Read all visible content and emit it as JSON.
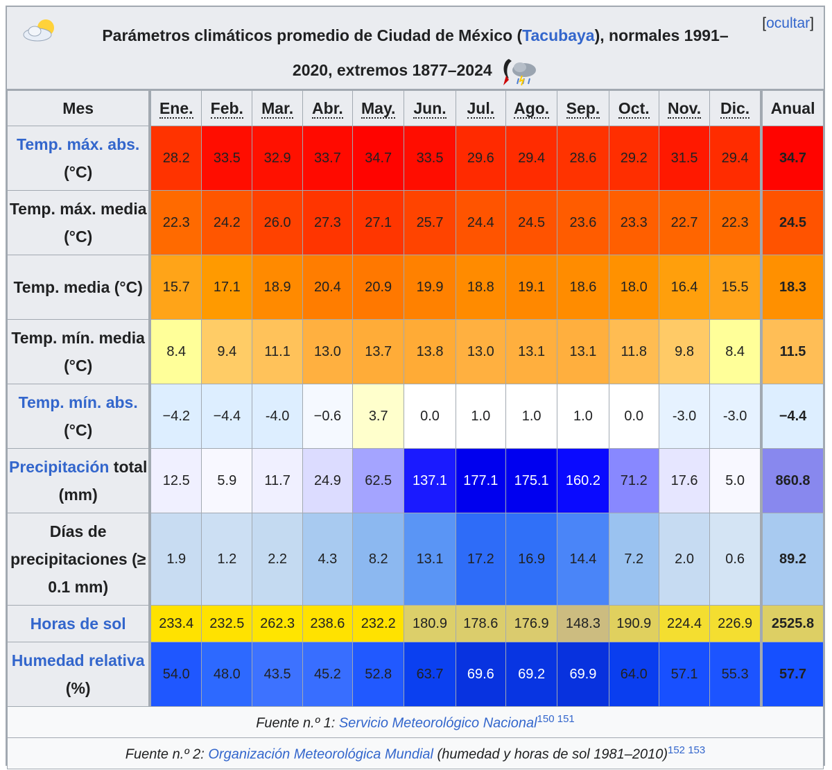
{
  "caption": {
    "prefix": "Parámetros climáticos promedio de Ciudad de México (",
    "link": "Tacubaya",
    "suffix_line1": "), normales 1991–",
    "line2": "2020, extremos 1877–2024",
    "hide_label": "ocultar"
  },
  "header": {
    "label": "Mes",
    "months": [
      "Ene.",
      "Feb.",
      "Mar.",
      "Abr.",
      "May.",
      "Jun.",
      "Jul.",
      "Ago.",
      "Sep.",
      "Oct.",
      "Nov.",
      "Dic."
    ],
    "annual": "Anual"
  },
  "rows": [
    {
      "label_link": "Temp. máx. abs.",
      "label_rest": " (°C)",
      "values": [
        "28.2",
        "33.5",
        "32.9",
        "33.7",
        "34.7",
        "33.5",
        "29.6",
        "29.4",
        "28.6",
        "29.2",
        "31.5",
        "29.4"
      ],
      "annual": "34.7",
      "colors": [
        "#ff3300",
        "#ff0d00",
        "#ff1100",
        "#ff0a00",
        "#ff0400",
        "#ff0d00",
        "#ff2a00",
        "#ff2c00",
        "#ff3300",
        "#ff2e00",
        "#ff1900",
        "#ff2c00"
      ],
      "annual_color": "#ff0400"
    },
    {
      "label_link": "",
      "label_rest": "Temp. máx. media (°C)",
      "values": [
        "22.3",
        "24.2",
        "26.0",
        "27.3",
        "27.1",
        "25.7",
        "24.4",
        "24.5",
        "23.6",
        "23.3",
        "22.7",
        "22.3"
      ],
      "annual": "24.5",
      "colors": [
        "#ff6a00",
        "#ff5600",
        "#ff4200",
        "#ff3500",
        "#ff3600",
        "#ff4400",
        "#ff5400",
        "#ff5300",
        "#ff5c00",
        "#ff5f00",
        "#ff6500",
        "#ff6a00"
      ],
      "annual_color": "#ff5300"
    },
    {
      "label_link": "",
      "label_rest": "Temp. media (°C)",
      "values": [
        "15.7",
        "17.1",
        "18.9",
        "20.4",
        "20.9",
        "19.9",
        "18.8",
        "19.1",
        "18.6",
        "18.0",
        "16.4",
        "15.5"
      ],
      "annual": "18.3",
      "colors": [
        "#ffa418",
        "#ff9a00",
        "#ff8a00",
        "#ff7d00",
        "#ff7800",
        "#ff8100",
        "#ff8b00",
        "#ff8800",
        "#ff8c00",
        "#ff9100",
        "#ff9f0c",
        "#ffa51b"
      ],
      "annual_color": "#ff9000"
    },
    {
      "label_link": "",
      "label_rest": "Temp. mín. media (°C)",
      "values": [
        "8.4",
        "9.4",
        "11.1",
        "13.0",
        "13.7",
        "13.8",
        "13.0",
        "13.1",
        "13.1",
        "11.8",
        "9.8",
        "8.4"
      ],
      "annual": "11.5",
      "colors": [
        "#ffff99",
        "#ffcc66",
        "#ffc25a",
        "#ffb040",
        "#ffac38",
        "#ffab36",
        "#ffb040",
        "#ffaf3e",
        "#ffaf3e",
        "#ffbc52",
        "#ffca66",
        "#ffff99"
      ],
      "annual_color": "#ffbe56"
    },
    {
      "label_link": "Temp. mín. abs.",
      "label_rest": " (°C)",
      "values": [
        "−4.2",
        "−4.4",
        "-4.0",
        "−0.6",
        "3.7",
        "0.0",
        "1.0",
        "1.0",
        "1.0",
        "0.0",
        "-3.0",
        "-3.0"
      ],
      "annual": "−4.4",
      "colors": [
        "#ddeeff",
        "#ddeeff",
        "#ddeeff",
        "#f5f9ff",
        "#ffffcc",
        "#ffffff",
        "#ffffff",
        "#ffffff",
        "#ffffff",
        "#ffffff",
        "#e6f2ff",
        "#e6f2ff"
      ],
      "annual_color": "#ddeeff"
    },
    {
      "label_link": "Precipitación",
      "label_rest": " total (mm)",
      "values": [
        "12.5",
        "5.9",
        "11.7",
        "24.9",
        "62.5",
        "137.1",
        "177.1",
        "175.1",
        "160.2",
        "71.2",
        "17.6",
        "5.0"
      ],
      "annual": "860.8",
      "colors": [
        "#f0f0ff",
        "#f8f8ff",
        "#f0f0ff",
        "#dcdcff",
        "#a4a4ff",
        "#1a1aff",
        "#0000ee",
        "#0000f0",
        "#0a0aff",
        "#8888ff",
        "#e6e6ff",
        "#f8f8ff"
      ],
      "annual_color": "#8888ee"
    },
    {
      "label_link": "",
      "label_rest": "Días de precipitaciones (≥ 0.1 mm)",
      "values": [
        "1.9",
        "1.2",
        "2.2",
        "4.3",
        "8.2",
        "13.1",
        "17.2",
        "16.9",
        "14.4",
        "7.2",
        "2.0",
        "0.6"
      ],
      "annual": "89.2",
      "colors": [
        "#c8dcf2",
        "#ccdff3",
        "#c4daf1",
        "#a8caf0",
        "#8cb8f0",
        "#5a95f5",
        "#2e6cf8",
        "#3070f8",
        "#4a85f8",
        "#9ac2f0",
        "#c6dbf2",
        "#d4e4f4"
      ],
      "annual_color": "#a8caf0"
    },
    {
      "label_link": "Horas de sol",
      "label_rest": "",
      "values": [
        "233.4",
        "232.5",
        "262.3",
        "238.6",
        "232.2",
        "180.9",
        "178.6",
        "176.9",
        "148.3",
        "190.9",
        "224.4",
        "226.9"
      ],
      "annual": "2525.8",
      "colors": [
        "#ffe200",
        "#ffe200",
        "#ffe500",
        "#ffe200",
        "#ffe200",
        "#dccf6a",
        "#dbcd6c",
        "#dacb6e",
        "#ccbc80",
        "#e0d05e",
        "#f4de30",
        "#f4de30"
      ],
      "annual_color": "#ddcf64"
    },
    {
      "label_link": "Humedad relativa",
      "label_rest": " (%)",
      "values": [
        "54.0",
        "48.0",
        "43.5",
        "45.2",
        "52.8",
        "63.7",
        "69.6",
        "69.2",
        "69.9",
        "64.0",
        "57.1",
        "55.3"
      ],
      "annual": "57.7",
      "colors": [
        "#1f57ff",
        "#2d69ff",
        "#3d72ff",
        "#386eff",
        "#2159ff",
        "#0b40f0",
        "#0833e0",
        "#0835e2",
        "#0832de",
        "#0a3eef",
        "#1850ff",
        "#1c54ff"
      ],
      "annual_color": "#1650ff"
    }
  ],
  "sources": [
    {
      "prefix": "Fuente n.º 1: ",
      "link": "Servicio Meteorológico Nacional",
      "rest": "",
      "refs": "150 151"
    },
    {
      "prefix": "Fuente n.º 2: ",
      "link": "Organización Meteorológica Mundial",
      "rest": " (humedad y horas de sol 1981–2010)",
      "refs": "152 153"
    }
  ]
}
